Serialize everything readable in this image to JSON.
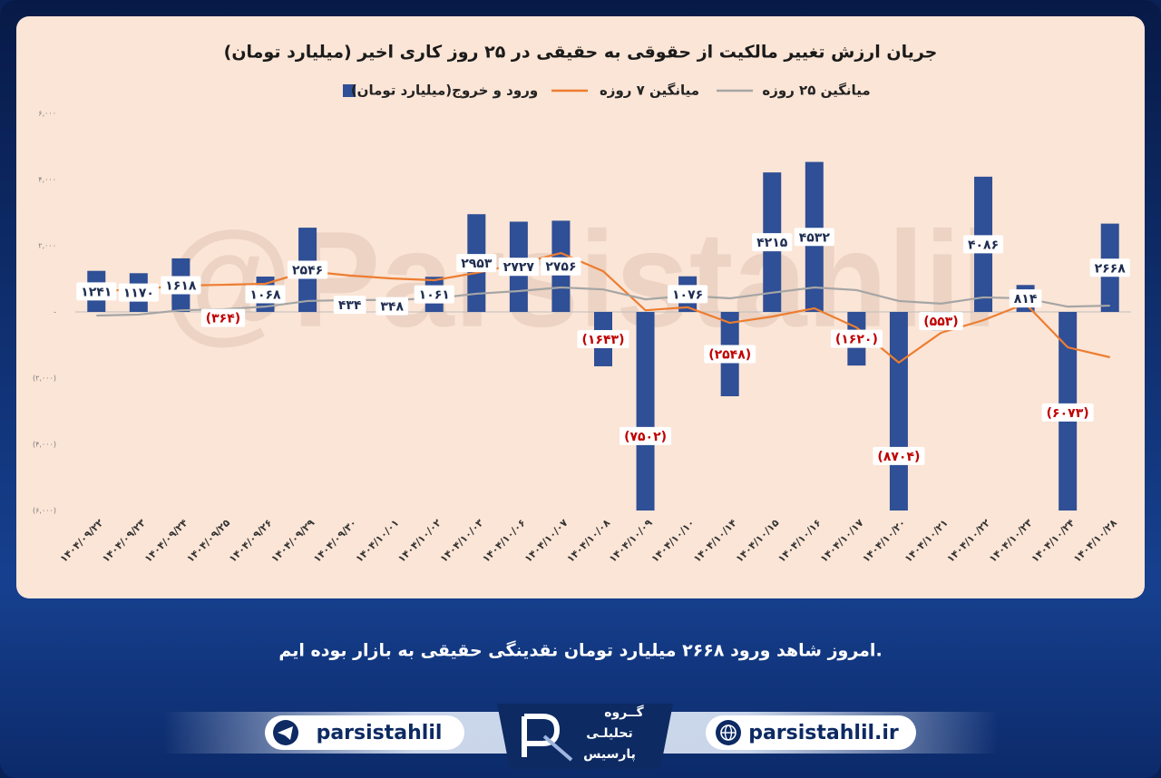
{
  "chart_data": {
    "type": "bar",
    "title": "جریان ارزش تغییر مالکیت از حقوقی به حقیقی در ۲۵ روز کاری اخیر (میلیارد تومان)",
    "watermark": "@Parsistahlil",
    "categories": [
      "۱۴۰۴/۰۹/۲۲",
      "۱۴۰۴/۰۹/۲۳",
      "۱۴۰۴/۰۹/۲۴",
      "۱۴۰۴/۰۹/۲۵",
      "۱۴۰۴/۰۹/۲۶",
      "۱۴۰۴/۰۹/۲۹",
      "۱۴۰۴/۰۹/۳۰",
      "۱۴۰۴/۱۰/۰۱",
      "۱۴۰۴/۱۰/۰۲",
      "۱۴۰۴/۱۰/۰۳",
      "۱۴۰۴/۱۰/۰۶",
      "۱۴۰۴/۱۰/۰۷",
      "۱۴۰۴/۱۰/۰۸",
      "۱۴۰۴/۱۰/۰۹",
      "۱۴۰۴/۱۰/۱۰",
      "۱۴۰۴/۱۰/۱۴",
      "۱۴۰۴/۱۰/۱۵",
      "۱۴۰۴/۱۰/۱۶",
      "۱۴۰۴/۱۰/۱۷",
      "۱۴۰۴/۱۰/۲۰",
      "۱۴۰۴/۱۰/۲۱",
      "۱۴۰۴/۱۰/۲۲",
      "۱۴۰۴/۱۰/۲۳",
      "۱۴۰۴/۱۰/۲۴",
      "۱۴۰۴/۱۰/۲۸"
    ],
    "series": [
      {
        "name": "ورود و خروج(میلیارد تومان)",
        "type": "bar",
        "color": "#2f4f96",
        "values": [
          1241,
          1170,
          1618,
          -364,
          1068,
          2546,
          434,
          348,
          1061,
          2953,
          2727,
          2756,
          -1643,
          -7502,
          1076,
          -2548,
          4215,
          4532,
          -1620,
          -8704,
          -553,
          4086,
          814,
          -6073,
          2668
        ],
        "value_labels": [
          "۱۲۴۱",
          "۱۱۷۰",
          "۱۶۱۸",
          "(۳۶۴)",
          "۱۰۶۸",
          "۲۵۴۶",
          "۴۳۴",
          "۳۴۸",
          "۱۰۶۱",
          "۲۹۵۳",
          "۲۷۲۷",
          "۲۷۵۶",
          "(۱۶۴۳)",
          "(۷۵۰۲)",
          "۱۰۷۶",
          "(۲۵۴۸)",
          "۴۲۱۵",
          "۴۵۳۲",
          "(۱۶۲۰)",
          "(۸۷۰۴)",
          "(۵۵۳)",
          "۴۰۸۶",
          "۸۱۴",
          "(۶۰۷۳)",
          "۲۶۶۸"
        ]
      },
      {
        "name": "میانگین ۷ روزه",
        "type": "line",
        "color": "#ed7d31",
        "values": [
          630,
          680,
          795,
          820,
          850,
          1230,
          1100,
          1010,
          960,
          1180,
          1450,
          1780,
          1230,
          50,
          140,
          -330,
          -140,
          110,
          -470,
          -1530,
          -630,
          -250,
          250,
          -1070,
          -1370
        ]
      },
      {
        "name": "میانگین ۲۵ روزه",
        "type": "line",
        "color": "#a5a5a5",
        "values": [
          -110,
          -80,
          50,
          80,
          160,
          330,
          360,
          360,
          410,
          550,
          630,
          740,
          680,
          380,
          490,
          410,
          580,
          740,
          660,
          330,
          250,
          440,
          410,
          160,
          190
        ]
      }
    ],
    "ylim": [
      -6000,
      6000
    ],
    "yticks": [
      {
        "value": 6000,
        "label": "۶,۰۰۰"
      },
      {
        "value": 4000,
        "label": "۴,۰۰۰"
      },
      {
        "value": 2000,
        "label": "۲,۰۰۰"
      },
      {
        "value": 0,
        "label": "-"
      },
      {
        "value": -2000,
        "label": "(۲,۰۰۰)"
      },
      {
        "value": -4000,
        "label": "(۴,۰۰۰)"
      },
      {
        "value": -6000,
        "label": "(۶,۰۰۰)"
      }
    ],
    "grid": false,
    "legend": "top"
  },
  "caption": "امروز شاهد ورود ۲۶۶۸ میلیارد تومان نقدینگی حقیقی به بازار بوده ایم.",
  "footer": {
    "telegram": "parsistahlil",
    "website": "parsistahlil.ir",
    "logo": [
      "گــروه",
      "تحلیلـی",
      "پارسیس"
    ]
  }
}
